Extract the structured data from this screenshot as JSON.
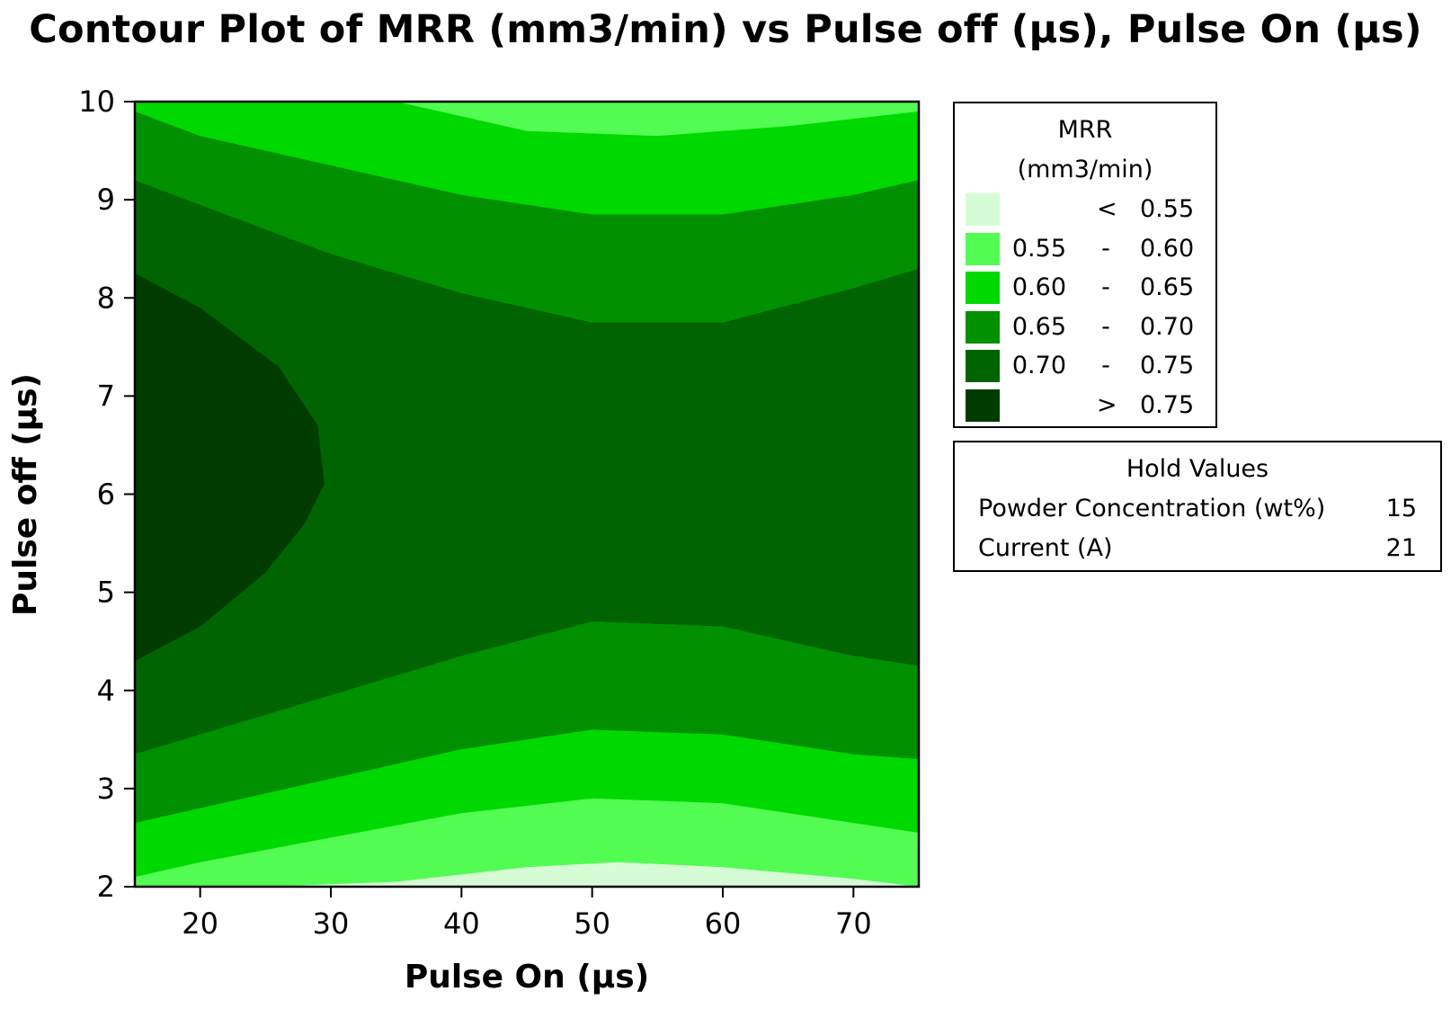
{
  "chart_data": {
    "type": "contour",
    "title": "Contour Plot of MRR (mm3/min) vs Pulse off (µs), Pulse On (µs)",
    "xlabel": "Pulse On (µs)",
    "ylabel": "Pulse off (µs)",
    "xlim": [
      15,
      75
    ],
    "ylim": [
      2,
      10
    ],
    "x_ticks": [
      20,
      30,
      40,
      50,
      60,
      70
    ],
    "y_ticks": [
      2,
      3,
      4,
      5,
      6,
      7,
      8,
      9,
      10
    ],
    "z_label": "MRR",
    "z_unit": "(mm3/min)",
    "levels": [
      {
        "lo": "",
        "op": "<",
        "hi": "0.55",
        "color": "#d6fcd6"
      },
      {
        "lo": "0.55",
        "op": "-",
        "hi": "0.60",
        "color": "#52fc52"
      },
      {
        "lo": "0.60",
        "op": "-",
        "hi": "0.65",
        "color": "#00d900"
      },
      {
        "lo": "0.65",
        "op": "-",
        "hi": "0.70",
        "color": "#009000"
      },
      {
        "lo": "0.70",
        "op": "-",
        "hi": "0.75",
        "color": "#006400"
      },
      {
        "lo": "",
        "op": ">",
        "hi": "0.75",
        "color": "#003c00"
      }
    ],
    "boundaries": [
      {
        "level": "0.55",
        "upper": [
          [
            15,
            2
          ],
          [
            25,
            2
          ],
          [
            35,
            2.05
          ],
          [
            45,
            2.2
          ],
          [
            52,
            2.25
          ],
          [
            60,
            2.2
          ],
          [
            70,
            2.08
          ],
          [
            75,
            2
          ]
        ]
      },
      {
        "level": "0.60",
        "upper": [
          [
            15,
            2.1
          ],
          [
            20,
            2.25
          ],
          [
            30,
            2.5
          ],
          [
            40,
            2.75
          ],
          [
            50,
            2.9
          ],
          [
            60,
            2.85
          ],
          [
            70,
            2.65
          ],
          [
            75,
            2.55
          ]
        ],
        "lower": [
          [
            15,
            10
          ],
          [
            35,
            10
          ],
          [
            45,
            9.7
          ],
          [
            55,
            9.65
          ],
          [
            65,
            9.75
          ],
          [
            75,
            9.9
          ]
        ]
      },
      {
        "level": "0.65",
        "upper": [
          [
            15,
            2.65
          ],
          [
            20,
            2.8
          ],
          [
            30,
            3.1
          ],
          [
            40,
            3.4
          ],
          [
            50,
            3.6
          ],
          [
            60,
            3.55
          ],
          [
            70,
            3.35
          ],
          [
            75,
            3.3
          ]
        ],
        "lower": [
          [
            15,
            9.9
          ],
          [
            20,
            9.65
          ],
          [
            30,
            9.35
          ],
          [
            40,
            9.05
          ],
          [
            50,
            8.85
          ],
          [
            60,
            8.85
          ],
          [
            70,
            9.05
          ],
          [
            75,
            9.2
          ]
        ]
      },
      {
        "level": "0.70",
        "upper": [
          [
            15,
            3.35
          ],
          [
            20,
            3.55
          ],
          [
            30,
            3.95
          ],
          [
            40,
            4.35
          ],
          [
            50,
            4.7
          ],
          [
            60,
            4.65
          ],
          [
            70,
            4.35
          ],
          [
            75,
            4.25
          ]
        ],
        "lower": [
          [
            15,
            9.2
          ],
          [
            20,
            8.95
          ],
          [
            30,
            8.45
          ],
          [
            40,
            8.05
          ],
          [
            50,
            7.75
          ],
          [
            60,
            7.75
          ],
          [
            70,
            8.1
          ],
          [
            75,
            8.3
          ]
        ]
      },
      {
        "level": "0.75",
        "upper": [
          [
            15,
            4.3
          ],
          [
            20,
            4.65
          ],
          [
            25,
            5.2
          ],
          [
            28,
            5.7
          ],
          [
            29.5,
            6.1
          ],
          [
            29,
            6.7
          ],
          [
            26,
            7.3
          ],
          [
            20,
            7.9
          ],
          [
            15,
            8.25
          ]
        ]
      }
    ]
  },
  "hold": {
    "title": "Hold Values",
    "rows": [
      {
        "label": "Powder Concentration (wt%)",
        "value": "15"
      },
      {
        "label": "Current (A)",
        "value": "21"
      }
    ]
  }
}
